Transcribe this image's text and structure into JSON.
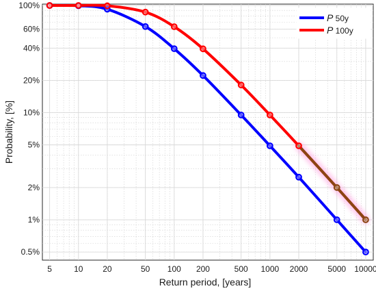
{
  "chart_data": {
    "type": "line",
    "title": "",
    "xlabel": "Return period, [years]",
    "ylabel": "Probability, [%]",
    "xscale": "log",
    "yscale": "log",
    "xlim": [
      4.2,
      12000
    ],
    "ylim": [
      0.42,
      103
    ],
    "grid": true,
    "legend_position": "top-right",
    "x_ticks": [
      5,
      10,
      20,
      50,
      100,
      200,
      500,
      1000,
      2000,
      5000,
      10000
    ],
    "x_tick_labels": [
      "5",
      "10",
      "20",
      "50",
      "100",
      "200",
      "500",
      "1000",
      "2000",
      "5000",
      "10000"
    ],
    "y_ticks": [
      0.5,
      1,
      2,
      5,
      10,
      20,
      40,
      60,
      100
    ],
    "y_tick_labels": [
      "0.5%",
      "1%",
      "2%",
      "5%",
      "10%",
      "20%",
      "40%",
      "60%",
      "100%"
    ],
    "series": [
      {
        "name_prefix": "P",
        "name_sub": "50y",
        "color": "#0000ff",
        "x": [
          5,
          10,
          20,
          50,
          100,
          200,
          500,
          1000,
          2000,
          5000,
          10000
        ],
        "values": [
          100,
          99.5,
          92.3,
          63.6,
          39.5,
          22.2,
          9.5,
          4.9,
          2.5,
          1.0,
          0.5
        ]
      },
      {
        "name_prefix": "P",
        "name_sub": "100y",
        "color": "#ff0000",
        "highlight_color": "#8b4513",
        "highlight_from_x": 2000,
        "x": [
          5,
          10,
          20,
          50,
          100,
          200,
          500,
          1000,
          2000,
          5000,
          10000
        ],
        "values": [
          100,
          100,
          99.4,
          86.7,
          63.4,
          39.4,
          18.1,
          9.5,
          4.9,
          2.0,
          1.0
        ]
      }
    ]
  }
}
